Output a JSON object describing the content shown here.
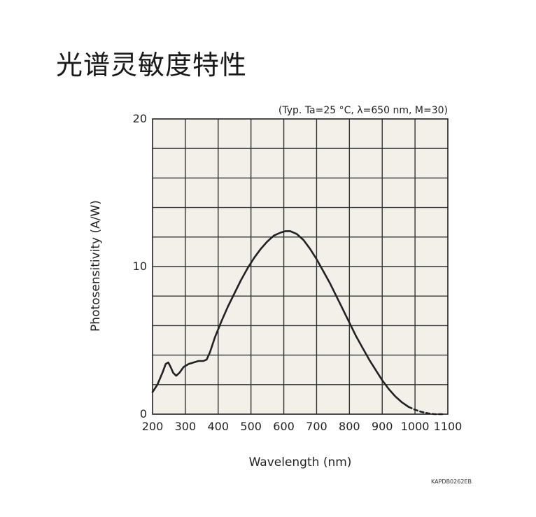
{
  "page": {
    "heading": "光谱灵敏度特性",
    "figure_code": "KAPDB0262EB"
  },
  "chart_data": {
    "type": "line",
    "title": "",
    "conditions": "(Typ. Ta=25 °C, λ=650 nm, M=30)",
    "xlabel": "Wavelength (nm)",
    "ylabel": "Photosensitivity (A/W)",
    "xlim": [
      200,
      1100
    ],
    "ylim": [
      0,
      20
    ],
    "xticks": [
      200,
      300,
      400,
      500,
      600,
      700,
      800,
      900,
      1000,
      1100
    ],
    "yticks": [
      0,
      10,
      20
    ],
    "grid": true,
    "plot_background": "#f3f0ea",
    "line_color": "#222222",
    "series": [
      {
        "style": "solid",
        "x": [
          200,
          215,
          230,
          240,
          248,
          255,
          263,
          272,
          282,
          295,
          310,
          325,
          340,
          355,
          365,
          375,
          390,
          410,
          430,
          450,
          470,
          490,
          510,
          530,
          550,
          570,
          590,
          605,
          620,
          640,
          660,
          680,
          700,
          720,
          740,
          760,
          780,
          800,
          820,
          840,
          860,
          880,
          900,
          920,
          940,
          960,
          980
        ],
        "y": [
          1.5,
          2.0,
          2.8,
          3.4,
          3.5,
          3.2,
          2.8,
          2.6,
          2.8,
          3.2,
          3.4,
          3.5,
          3.6,
          3.6,
          3.7,
          4.2,
          5.2,
          6.3,
          7.3,
          8.2,
          9.1,
          9.9,
          10.6,
          11.2,
          11.7,
          12.1,
          12.3,
          12.4,
          12.4,
          12.2,
          11.8,
          11.2,
          10.5,
          9.7,
          8.9,
          8.0,
          7.1,
          6.2,
          5.3,
          4.5,
          3.7,
          3.0,
          2.3,
          1.7,
          1.2,
          0.8,
          0.5
        ]
      },
      {
        "style": "dashed",
        "x": [
          980,
          1000,
          1020,
          1040,
          1060,
          1080,
          1090
        ],
        "y": [
          0.5,
          0.3,
          0.15,
          0.05,
          0.0,
          0.0,
          0.0
        ]
      }
    ]
  }
}
